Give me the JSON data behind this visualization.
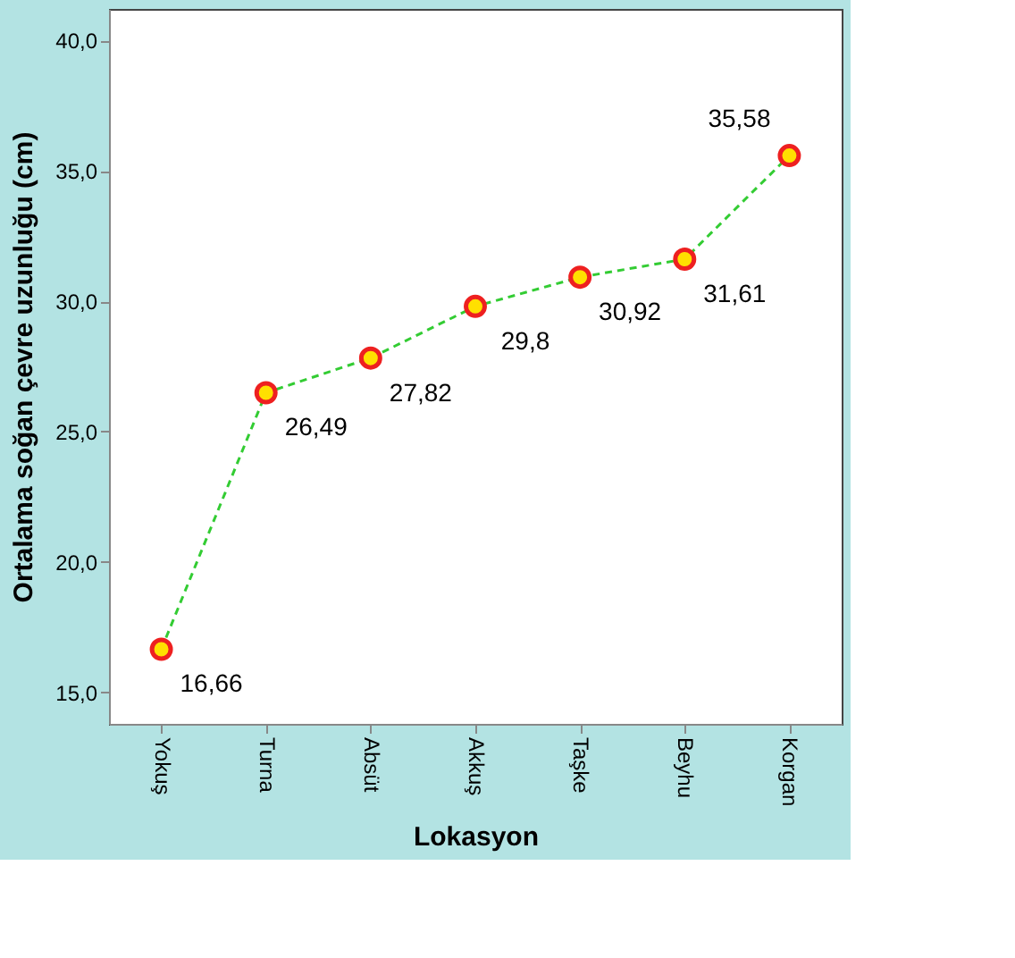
{
  "chart_data": {
    "type": "line",
    "xlabel": "Lokasyon",
    "ylabel": "Ortalama soğan çevre uzunluğu (cm)",
    "categories": [
      "Yokuş",
      "Turna",
      "Absüt",
      "Akkuş",
      "Taşke",
      "Beyhu",
      "Korgan"
    ],
    "series": [
      {
        "color": "#33cc33",
        "values": [
          16.66,
          26.49,
          27.82,
          29.8,
          30.92,
          31.61,
          35.58
        ],
        "value_labels": [
          "16,66",
          "26,49",
          "27,82",
          "29,8",
          "30,92",
          "31,61",
          "35,58"
        ]
      }
    ],
    "ylim": [
      13.8,
      41.2
    ],
    "yticks": [
      {
        "value": 15,
        "label": "15,0"
      },
      {
        "value": 20,
        "label": "20,0"
      },
      {
        "value": 25,
        "label": "25,0"
      },
      {
        "value": 30,
        "label": "30,0"
      },
      {
        "value": 35,
        "label": "35,0"
      },
      {
        "value": 40,
        "label": "40,0"
      }
    ],
    "marker": "circle",
    "line_style": "dashed"
  }
}
